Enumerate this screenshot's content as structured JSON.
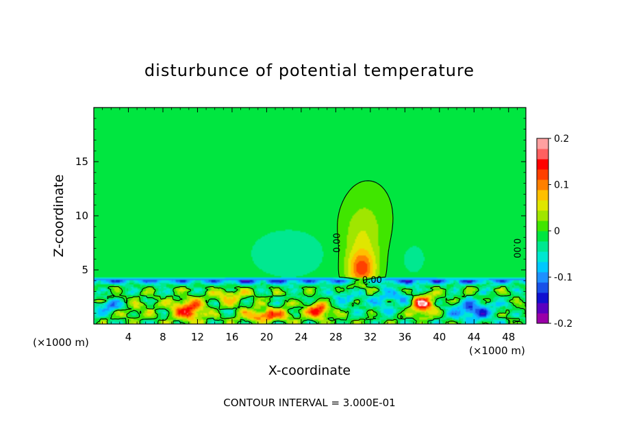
{
  "chart_data": {
    "type": "heatmap",
    "title": "disturbunce of potential temperature",
    "xlabel": "X-coordinate",
    "ylabel": "Z-coordinate",
    "x_unit": "(×1000 m)",
    "xlim": [
      0,
      50
    ],
    "ylim": [
      0,
      20
    ],
    "x_ticks": [
      4,
      8,
      12,
      16,
      20,
      24,
      28,
      32,
      36,
      40,
      44,
      48
    ],
    "y_ticks": [
      5,
      10,
      15
    ],
    "colorbar": {
      "range": [
        -0.2,
        0.2
      ],
      "tick_values": [
        0.2,
        0.1,
        0,
        -0.1,
        -0.2
      ],
      "tick_labels": [
        "0.2",
        "0.1",
        "0",
        "-0.1",
        "-0.2"
      ],
      "colors": [
        "#9a00a8",
        "#5a00c0",
        "#1010d0",
        "#1850e8",
        "#1e90ff",
        "#00c8ff",
        "#00e8d0",
        "#00e890",
        "#00e640",
        "#40e600",
        "#a0e600",
        "#e0e600",
        "#ffc000",
        "#ff8000",
        "#ff4000",
        "#ff0000",
        "#ff6060",
        "#ffa0a0"
      ]
    },
    "contour_interval_label": "CONTOUR INTERVAL = 3.000E-01",
    "contour_labels": [
      "0.00",
      "0.00",
      "0.00"
    ],
    "field": {
      "background_value": -0.01,
      "blobs": [
        {
          "x": 31,
          "z": 5.0,
          "sx": 1.6,
          "sz": 1.6,
          "v": 0.11
        },
        {
          "x": 31,
          "z": 7.5,
          "sx": 2.3,
          "sz": 3.2,
          "v": 0.05
        },
        {
          "x": 32,
          "z": 10.5,
          "sx": 3.2,
          "sz": 3.5,
          "v": 0.015
        },
        {
          "x": 22.5,
          "z": 6.5,
          "sx": 4.5,
          "sz": 2.3,
          "v": -0.03
        },
        {
          "x": 37,
          "z": 6.0,
          "sx": 2.0,
          "sz": 2.0,
          "v": -0.018
        },
        {
          "x": 43,
          "z": 4.8,
          "sx": 2.6,
          "sz": 1.0,
          "v": 0.01
        }
      ],
      "low_level_blobs": [
        {
          "x": 11,
          "z": 1.3,
          "sx": 1.8,
          "sz": 0.9,
          "v": 0.16
        },
        {
          "x": 4,
          "z": 1.4,
          "sx": 3.0,
          "sz": 0.9,
          "v": 0.04
        },
        {
          "x": 20,
          "z": 0.8,
          "sx": 2.8,
          "sz": 0.6,
          "v": 0.13
        },
        {
          "x": 26,
          "z": 1.2,
          "sx": 1.2,
          "sz": 0.7,
          "v": 0.17
        },
        {
          "x": 38,
          "z": 1.8,
          "sx": 1.4,
          "sz": 0.9,
          "v": 0.19
        },
        {
          "x": 44,
          "z": 1.2,
          "sx": 2.5,
          "sz": 0.9,
          "v": -0.12
        },
        {
          "x": 2,
          "z": 1.6,
          "sx": 1.6,
          "sz": 0.6,
          "v": -0.11
        },
        {
          "x": 34.5,
          "z": 2.4,
          "sx": 3.5,
          "sz": 1.2,
          "v": -0.06
        },
        {
          "x": 16,
          "z": 2.6,
          "sx": 2.0,
          "sz": 0.7,
          "v": 0.07
        },
        {
          "x": 29,
          "z": 2.5,
          "sx": 1.8,
          "sz": 0.9,
          "v": -0.05
        }
      ],
      "inversion_layer": {
        "z_top": 4.0,
        "z_width": 0.35,
        "v": -0.09
      }
    }
  }
}
